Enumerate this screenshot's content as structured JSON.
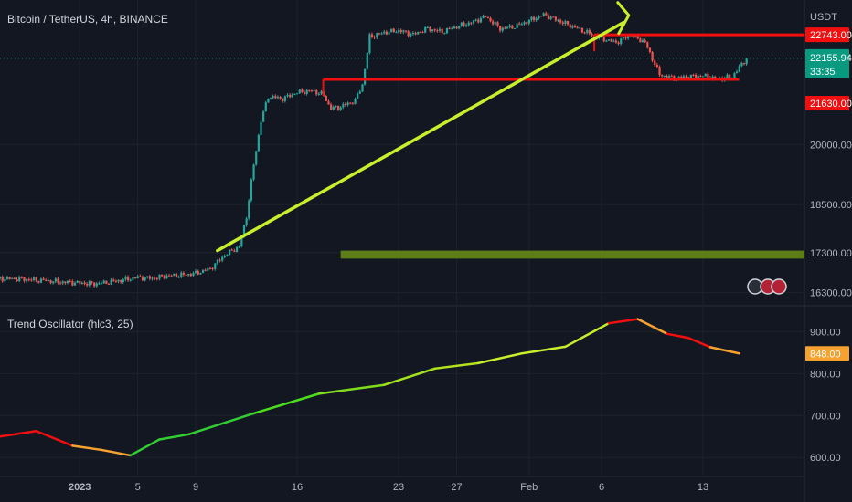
{
  "chart_data": [
    {
      "type": "candlestick",
      "title": "Bitcoin / TetherUS, 4h, BINANCE",
      "currency": "USDT",
      "x_ticks": [
        "2023",
        "5",
        "9",
        "16",
        "23",
        "27",
        "Feb",
        "6",
        "13"
      ],
      "x_tick_days": [
        1,
        5,
        9,
        16,
        23,
        27,
        32,
        37,
        44
      ],
      "y_ticks": [
        "20000.00",
        "18500.00",
        "17300.00",
        "16300.00"
      ],
      "y_tick_values": [
        20000,
        18500,
        17300,
        16300
      ],
      "ylim": [
        16200,
        23500
      ],
      "xlim": [
        -4.5,
        51
      ],
      "price_path": [
        [
          -4.5,
          16650
        ],
        [
          -3,
          16640
        ],
        [
          -1.5,
          16600
        ],
        [
          0,
          16560
        ],
        [
          1,
          16540
        ],
        [
          2,
          16520
        ],
        [
          3,
          16560
        ],
        [
          4,
          16620
        ],
        [
          5,
          16680
        ],
        [
          6,
          16660
        ],
        [
          7,
          16720
        ],
        [
          8,
          16740
        ],
        [
          9,
          16780
        ],
        [
          10,
          16900
        ],
        [
          11,
          17240
        ],
        [
          12,
          17450
        ],
        [
          12.5,
          18200
        ],
        [
          13,
          19500
        ],
        [
          13.5,
          20600
        ],
        [
          14,
          21200
        ],
        [
          15,
          21150
        ],
        [
          16,
          21300
        ],
        [
          17,
          21350
        ],
        [
          17.8,
          21250
        ],
        [
          18.3,
          20900
        ],
        [
          19,
          20950
        ],
        [
          20,
          21100
        ],
        [
          20.5,
          21500
        ],
        [
          21,
          22700
        ],
        [
          22,
          22800
        ],
        [
          23,
          22850
        ],
        [
          24,
          22750
        ],
        [
          25,
          22900
        ],
        [
          26,
          22820
        ],
        [
          27,
          22950
        ],
        [
          28,
          23050
        ],
        [
          29,
          23200
        ],
        [
          30,
          22900
        ],
        [
          31,
          22950
        ],
        [
          32,
          23100
        ],
        [
          33,
          23250
        ],
        [
          34,
          23100
        ],
        [
          35,
          22950
        ],
        [
          36,
          22800
        ],
        [
          37,
          22650
        ],
        [
          38,
          22550
        ],
        [
          39,
          22750
        ],
        [
          40,
          22550
        ],
        [
          41,
          21750
        ],
        [
          42,
          21650
        ],
        [
          43,
          21700
        ],
        [
          44,
          21720
        ],
        [
          45,
          21640
        ],
        [
          46,
          21700
        ],
        [
          47,
          22156
        ]
      ],
      "last_price": "22155.94",
      "countdown": "33:35",
      "levels": [
        {
          "label": "22743.00",
          "value": 22743,
          "color": "#f20f0f"
        },
        {
          "label": "21630.00",
          "value": 21630,
          "color": "#f20f0f"
        }
      ],
      "trendline": {
        "from": [
          10.5,
          17350
        ],
        "to": [
          38.5,
          23050
        ],
        "color": "#c7ef2c"
      },
      "zone": {
        "from_day": 19,
        "to_day": 51,
        "low": 17150,
        "high": 17350,
        "color": "#6a8f16"
      },
      "support_segments": [
        {
          "from_day": 17.8,
          "to_day": 46.5,
          "value": 21630
        },
        {
          "from_day": 36.5,
          "to_day": 51,
          "value": 22743
        }
      ],
      "last_price_color": "#089981"
    },
    {
      "type": "line",
      "title": "Trend Oscillator (hlc3, 25)",
      "y_ticks": [
        "900.00",
        "800.00",
        "700.00",
        "600.00"
      ],
      "y_tick_values": [
        900,
        800,
        700,
        600
      ],
      "ylim": [
        570,
        940
      ],
      "last_value": "848.00",
      "last_color": "#f7a130",
      "x": [
        -4.5,
        -2,
        0.5,
        2.5,
        4.5,
        6.5,
        8.5,
        13,
        17.5,
        22,
        25.5,
        28.5,
        31.5,
        34.5,
        37.5,
        39.5,
        41.5,
        43,
        44.5,
        46.5
      ],
      "y": [
        650,
        663,
        628,
        618,
        605,
        643,
        655,
        705,
        752,
        773,
        812,
        825,
        848,
        864,
        920,
        930,
        895,
        885,
        863,
        848
      ],
      "segment_colors": [
        "#f20f0f",
        "#f20f0f",
        "#f7a130",
        "#f7a130",
        "#32cd32",
        "#32cd32",
        "#32cd32",
        "#4ade1c",
        "#7fdc1c",
        "#a4e21c",
        "#b5e21c",
        "#c7ef2c",
        "#c7ef2c",
        "#c7ef2c",
        "#f20f0f",
        "#f7a130",
        "#f20f0f",
        "#f20f0f",
        "#f7a130"
      ]
    }
  ]
}
